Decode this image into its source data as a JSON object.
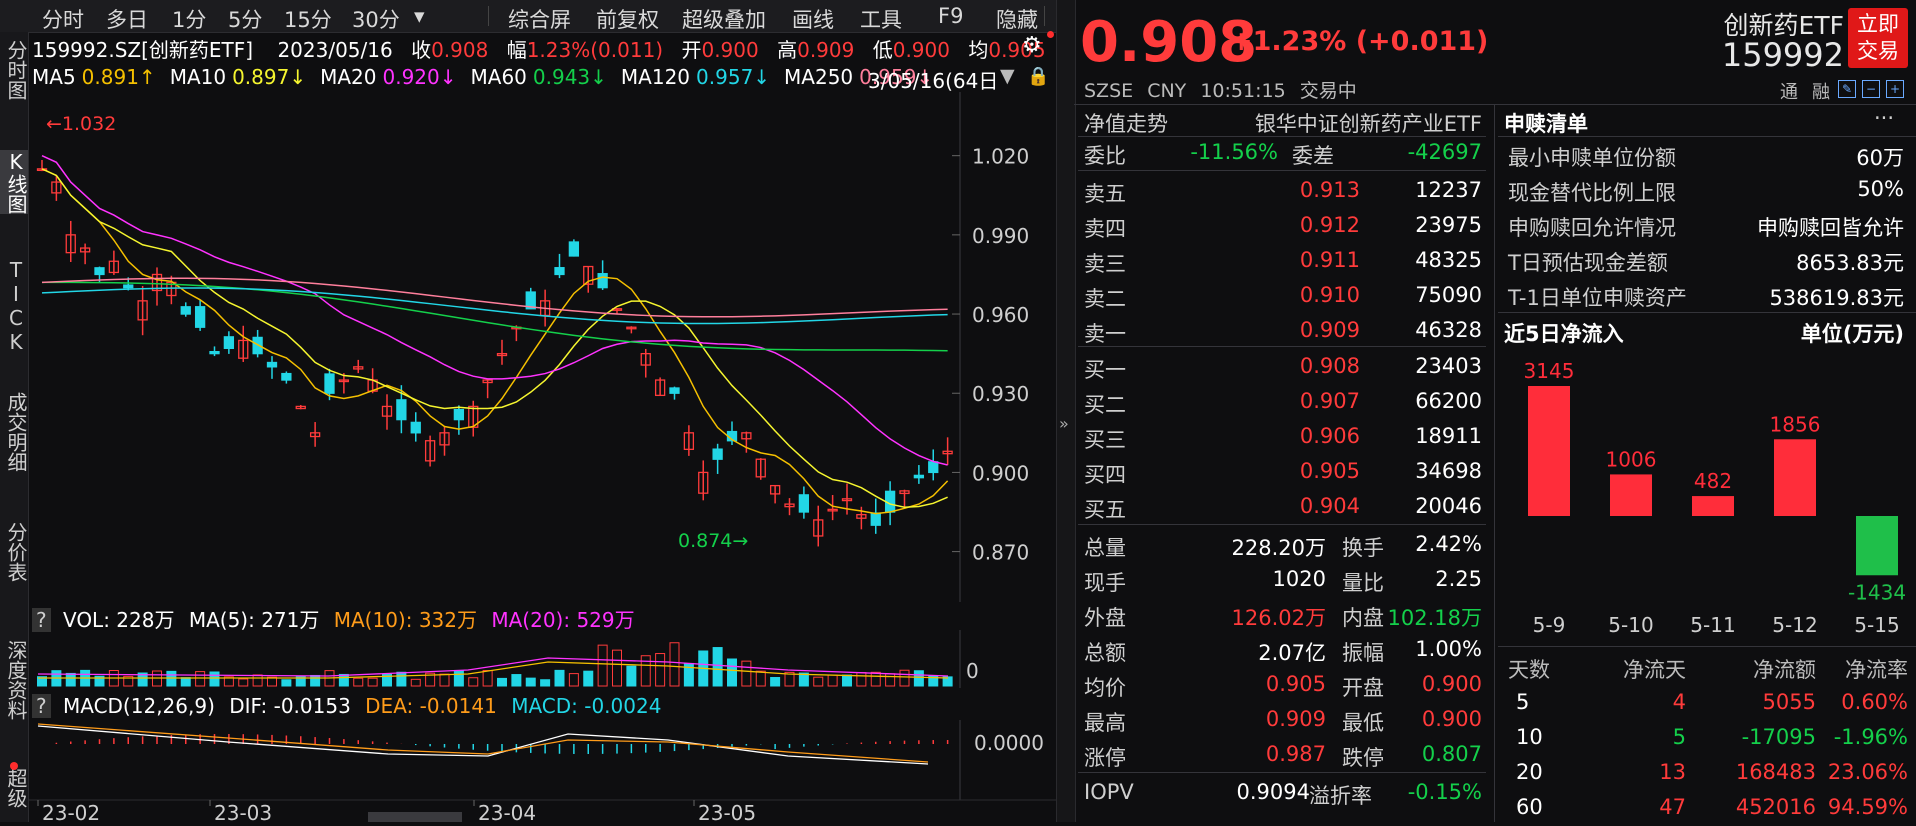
{
  "toolbar": {
    "items": [
      "分时",
      "多日",
      "1分",
      "5分",
      "15分",
      "30分",
      "▾",
      "综合屏",
      "前复权",
      "超级叠加",
      "画线",
      "工具",
      "F9",
      "隐藏"
    ]
  },
  "leftnav": [
    "分时图",
    "K线图",
    "TICK",
    "成交明细",
    "分价表",
    "深度资料",
    "超级"
  ],
  "info": {
    "code": "159992.SZ[创新药ETF]",
    "date": "2023/05/16",
    "close_label": "收",
    "close": "0.908",
    "range_label": "幅",
    "range": "1.23%(0.011)",
    "open_label": "开",
    "open": "0.900",
    "high_label": "高",
    "high": "0.909",
    "low_label": "低",
    "low": "0.900",
    "avg_label": "均",
    "avg": "0.905"
  },
  "ma": [
    {
      "label": "MA5",
      "value": "0.891↑",
      "color": "#f5c000"
    },
    {
      "label": "MA10",
      "value": "0.897↓",
      "color": "#f5f52f"
    },
    {
      "label": "MA20",
      "value": "0.920↓",
      "color": "#ff33ff"
    },
    {
      "label": "MA60",
      "value": "0.943↓",
      "color": "#14d04b"
    },
    {
      "label": "MA120",
      "value": "0.957↓",
      "color": "#22d6e6"
    },
    {
      "label": "MA250",
      "value": "0.959↓",
      "color": "#ff7f9c"
    }
  ],
  "ma_period": "3/05/16(64日)",
  "kline": {
    "max_label": "1.032",
    "min_label": "0.874",
    "y_ticks": [
      "1.020",
      "0.990",
      "0.960",
      "0.930",
      "0.900",
      "0.870"
    ],
    "x_ticks": [
      "23-02",
      "23-03",
      "23-04",
      "23-05"
    ]
  },
  "vol": {
    "help": "?",
    "label": "VOL: 228万",
    "ma5": "MA(5): 271万",
    "ma10": "MA(10): 332万",
    "ma20": "MA(20): 529万",
    "zero": "0"
  },
  "macd": {
    "help": "?",
    "label": "MACD(12,26,9)",
    "dif": "DIF: -0.0153",
    "dea": "DEA: -0.0141",
    "macd": "MACD: -0.0024",
    "zero": "0.0000"
  },
  "quote": {
    "price": "0.908",
    "change": "+1.23% (+0.011)",
    "name": "创新药ETF",
    "code": "159992",
    "exchange": "SZSE",
    "currency": "CNY",
    "time": "10:51:15",
    "status": "交易中",
    "trade_btn": "立即交易",
    "tag1": "通",
    "tag2": "融"
  },
  "orderbook": {
    "nav_label": "净值走势",
    "index_name": "银华中证创新药产业ETF",
    "weibi_label": "委比",
    "weibi": "-11.56%",
    "weicha_label": "委差",
    "weicha": "-42697",
    "asks": [
      {
        "label": "卖五",
        "price": "0.913",
        "vol": "12237"
      },
      {
        "label": "卖四",
        "price": "0.912",
        "vol": "23975"
      },
      {
        "label": "卖三",
        "price": "0.911",
        "vol": "48325"
      },
      {
        "label": "卖二",
        "price": "0.910",
        "vol": "75090"
      },
      {
        "label": "卖一",
        "price": "0.909",
        "vol": "46328"
      }
    ],
    "bids": [
      {
        "label": "买一",
        "price": "0.908",
        "vol": "23403"
      },
      {
        "label": "买二",
        "price": "0.907",
        "vol": "66200"
      },
      {
        "label": "买三",
        "price": "0.906",
        "vol": "18911"
      },
      {
        "label": "买四",
        "price": "0.905",
        "vol": "34698"
      },
      {
        "label": "买五",
        "price": "0.904",
        "vol": "20046"
      }
    ]
  },
  "stats": [
    {
      "l1": "总量",
      "v1": "228.20万",
      "c1": "#ffffff",
      "l2": "换手",
      "v2": "2.42%",
      "c2": "#ffffff"
    },
    {
      "l1": "现手",
      "v1": "1020",
      "c1": "#ffffff",
      "l2": "量比",
      "v2": "2.25",
      "c2": "#ffffff"
    },
    {
      "l1": "外盘",
      "v1": "126.02万",
      "c1": "#ff3b3b",
      "l2": "内盘",
      "v2": "102.18万",
      "c2": "#14d04b"
    },
    {
      "l1": "总额",
      "v1": "2.07亿",
      "c1": "#ffffff",
      "l2": "振幅",
      "v2": "1.00%",
      "c2": "#ffffff"
    },
    {
      "l1": "均价",
      "v1": "0.905",
      "c1": "#ff3b3b",
      "l2": "开盘",
      "v2": "0.900",
      "c2": "#ff3b3b"
    },
    {
      "l1": "最高",
      "v1": "0.909",
      "c1": "#ff3b3b",
      "l2": "最低",
      "v2": "0.900",
      "c2": "#ff3b3b"
    },
    {
      "l1": "涨停",
      "v1": "0.987",
      "c1": "#ff3b3b",
      "l2": "跌停",
      "v2": "0.807",
      "c2": "#14d04b"
    }
  ],
  "iopv": {
    "label": "IOPV",
    "value": "0.9094",
    "prem_label": "溢折率",
    "prem": "-0.15%"
  },
  "subscription": {
    "title": "申赎清单",
    "more": "···",
    "rows": [
      {
        "label": "最小申赎单位份额",
        "value": "60万"
      },
      {
        "label": "现金替代比例上限",
        "value": "50%"
      },
      {
        "label": "申购赎回允许情况",
        "value": "申购赎回皆允许"
      },
      {
        "label": "T日预估现金差额",
        "value": "8653.83元"
      },
      {
        "label": "T-1日单位申赎资产",
        "value": "538619.83元"
      }
    ]
  },
  "netflow": {
    "title": "近5日净流入",
    "unit": "单位(万元)",
    "headers": [
      "天数",
      "净流天",
      "净流额",
      "净流率"
    ],
    "rows": [
      {
        "days": "5",
        "flow_days": "4",
        "amount": "5055",
        "rate": "0.60%",
        "c": "#ff3b3b"
      },
      {
        "days": "10",
        "flow_days": "5",
        "amount": "-17095",
        "rate": "-1.96%",
        "c": "#14d04b"
      },
      {
        "days": "20",
        "flow_days": "13",
        "amount": "168483",
        "rate": "23.06%",
        "c": "#ff3b3b"
      },
      {
        "days": "60",
        "flow_days": "47",
        "amount": "452016",
        "rate": "94.59%",
        "c": "#ff3b3b"
      }
    ]
  },
  "chart_data": {
    "type": "bar",
    "title": "近5日净流入",
    "categories": [
      "5-9",
      "5-10",
      "5-11",
      "5-12",
      "5-15"
    ],
    "values": [
      3145,
      1006,
      482,
      1856,
      -1434
    ],
    "colors": {
      "positive": "#ff2d3a",
      "negative": "#1fbf4a"
    }
  }
}
